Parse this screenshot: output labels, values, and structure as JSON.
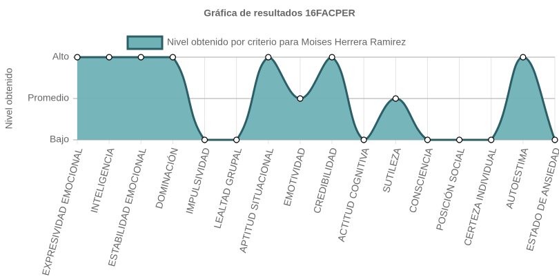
{
  "chart_data": {
    "type": "area",
    "title": "Gráfica de resultados 16FACPER",
    "y_label": "Nivel obtenido",
    "categories": [
      "EXPRESIVIDAD EMOCIONAL",
      "INTELIGENCIA",
      "ESTABILIDAD EMOCIONAL",
      "DOMINACIÓN",
      "IMPULSIVIDAD",
      "LEALTAD GRUPAL",
      "APTITUD SITUACIONAL",
      "EMOTIVIDAD",
      "CREDIBILIDAD",
      "ACTITUD COGNITIVA",
      "SUTILEZA",
      "CONSCIENCIA",
      "POSICIÓN SOCIAL",
      "CERTEZA INDIVIDUAL",
      "AUTOESTIMA",
      "ESTADO DE ANSIEDAD"
    ],
    "series": [
      {
        "name": "Nivel obtenido por criterio para Moises Herrera Ramirez",
        "color": "#2b5f68",
        "fill": "#6fb2b6",
        "values": [
          2,
          2,
          2,
          2,
          0,
          0,
          2,
          1,
          2,
          0,
          1,
          0,
          0,
          0,
          2,
          0
        ]
      }
    ],
    "ylim": [
      0,
      2
    ],
    "yticks": [
      {
        "value": 0,
        "label": "Bajo"
      },
      {
        "value": 1,
        "label": "Promedio"
      },
      {
        "value": 2,
        "label": "Alto"
      }
    ],
    "grid": true
  }
}
